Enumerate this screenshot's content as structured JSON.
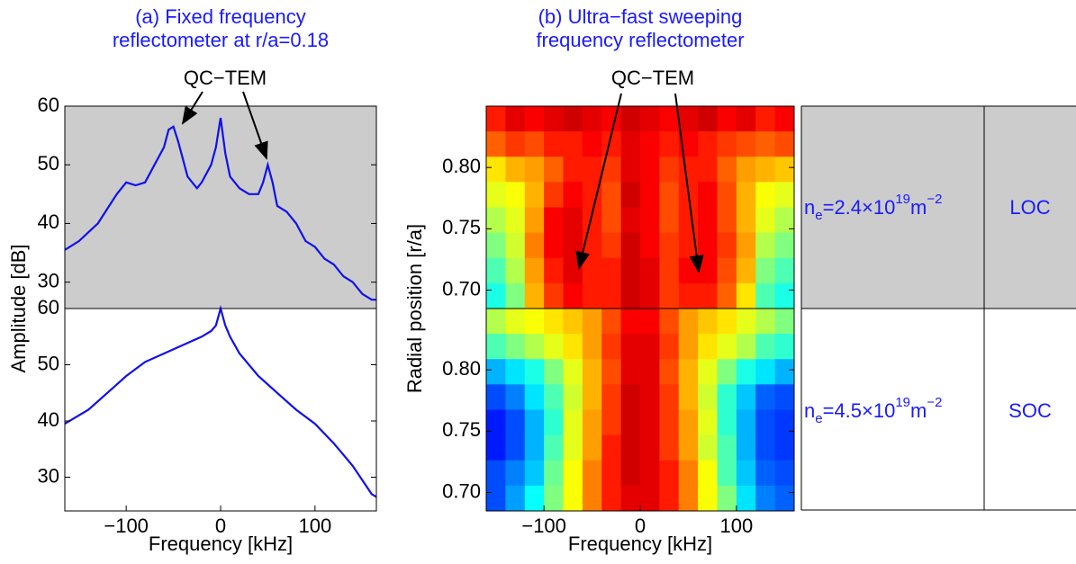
{
  "chart_data": [
    {
      "type": "line",
      "title": [
        "(a) Fixed frequency",
        "reflectometer at r/a=0.18"
      ],
      "ylabel": "Amplitude [dB]",
      "background": "#cccccc",
      "color": "#1010ee",
      "annotations": [
        {
          "text": "QC−TEM"
        }
      ],
      "x": [
        -165,
        -150,
        -130,
        -110,
        -100,
        -90,
        -80,
        -70,
        -60,
        -55,
        -50,
        -45,
        -40,
        -35,
        -30,
        -25,
        -20,
        -10,
        -5,
        0,
        5,
        10,
        20,
        30,
        40,
        45,
        50,
        55,
        60,
        70,
        80,
        90,
        100,
        110,
        120,
        130,
        140,
        150,
        160,
        165
      ],
      "values": [
        35.5,
        37,
        40,
        45,
        47,
        46.5,
        47,
        50,
        53,
        56,
        56.5,
        54,
        51,
        48,
        47,
        46,
        47,
        50,
        53,
        58,
        52,
        48,
        46,
        45,
        45,
        47,
        50,
        47,
        43,
        42,
        40,
        37,
        36,
        34,
        33,
        31,
        30,
        28,
        27,
        27
      ],
      "xlim": [
        -165,
        165
      ],
      "ylim": [
        25.5,
        60
      ],
      "yticks": [
        30,
        40,
        50,
        60
      ]
    },
    {
      "type": "line",
      "xlabel": "Frequency [kHz]",
      "color": "#1010ee",
      "x": [
        -165,
        -140,
        -120,
        -100,
        -80,
        -60,
        -40,
        -20,
        -10,
        -5,
        0,
        5,
        10,
        20,
        40,
        60,
        80,
        100,
        120,
        140,
        160,
        165
      ],
      "values": [
        39.5,
        42,
        45,
        48,
        50.5,
        52,
        53.5,
        55,
        56,
        57,
        60,
        57,
        55,
        52,
        48,
        45,
        42,
        39.5,
        36,
        32,
        27,
        26.5
      ],
      "xlim": [
        -165,
        165
      ],
      "ylim": [
        24,
        60
      ],
      "yticks": [
        30,
        40,
        50,
        60
      ],
      "xticks": [
        {
          "value": -100,
          "label": "−100"
        },
        0,
        100
      ]
    },
    {
      "type": "heatmap",
      "title": [
        "(b) Ultra−fast sweeping",
        "frequency reflectometer"
      ],
      "ylabel": "Radial position [r/a]",
      "colormap": "jet",
      "clim": [
        0,
        1
      ],
      "annotations": [
        {
          "text": "QC−TEM"
        }
      ],
      "xlim": [
        -160,
        160
      ],
      "ylim": [
        0.685,
        0.85
      ],
      "yticks": [
        {
          "value": 0.7,
          "label": "0.70"
        },
        {
          "value": 0.75,
          "label": "0.75"
        },
        {
          "value": 0.8,
          "label": "0.80"
        }
      ],
      "z": [
        [
          0.85,
          0.9,
          0.88,
          0.9,
          0.92,
          0.9,
          0.88,
          0.92,
          0.9,
          0.88,
          0.9,
          0.92,
          0.88,
          0.9,
          0.85,
          0.88
        ],
        [
          0.78,
          0.82,
          0.8,
          0.85,
          0.85,
          0.88,
          0.85,
          0.9,
          0.88,
          0.85,
          0.88,
          0.85,
          0.82,
          0.8,
          0.78,
          0.8
        ],
        [
          0.65,
          0.7,
          0.72,
          0.78,
          0.85,
          0.85,
          0.82,
          0.9,
          0.88,
          0.82,
          0.85,
          0.85,
          0.78,
          0.72,
          0.7,
          0.68
        ],
        [
          0.6,
          0.62,
          0.7,
          0.82,
          0.88,
          0.85,
          0.8,
          0.92,
          0.88,
          0.8,
          0.85,
          0.88,
          0.8,
          0.7,
          0.62,
          0.6
        ],
        [
          0.55,
          0.6,
          0.72,
          0.88,
          0.9,
          0.85,
          0.8,
          0.9,
          0.88,
          0.8,
          0.85,
          0.88,
          0.8,
          0.7,
          0.6,
          0.55
        ],
        [
          0.5,
          0.58,
          0.75,
          0.88,
          0.9,
          0.85,
          0.82,
          0.92,
          0.88,
          0.82,
          0.85,
          0.88,
          0.82,
          0.72,
          0.55,
          0.5
        ],
        [
          0.45,
          0.55,
          0.72,
          0.85,
          0.9,
          0.85,
          0.85,
          0.92,
          0.9,
          0.82,
          0.88,
          0.88,
          0.8,
          0.7,
          0.5,
          0.45
        ],
        [
          0.4,
          0.5,
          0.7,
          0.82,
          0.88,
          0.85,
          0.85,
          0.92,
          0.9,
          0.82,
          0.85,
          0.85,
          0.78,
          0.65,
          0.45,
          0.4
        ]
      ]
    },
    {
      "type": "heatmap",
      "xlabel": "Frequency [kHz]",
      "colormap": "jet",
      "clim": [
        0,
        1
      ],
      "xlim": [
        -160,
        160
      ],
      "ylim": [
        0.685,
        0.85
      ],
      "xticks": [
        {
          "value": -100,
          "label": "−100"
        },
        0,
        100
      ],
      "yticks": [
        {
          "value": 0.7,
          "label": "0.70"
        },
        {
          "value": 0.75,
          "label": "0.75"
        },
        {
          "value": 0.8,
          "label": "0.80"
        }
      ],
      "z": [
        [
          0.55,
          0.6,
          0.62,
          0.65,
          0.68,
          0.72,
          0.8,
          0.88,
          0.88,
          0.8,
          0.72,
          0.68,
          0.65,
          0.6,
          0.55,
          0.5
        ],
        [
          0.45,
          0.5,
          0.55,
          0.6,
          0.65,
          0.72,
          0.82,
          0.9,
          0.9,
          0.82,
          0.72,
          0.65,
          0.6,
          0.55,
          0.45,
          0.42
        ],
        [
          0.3,
          0.35,
          0.4,
          0.5,
          0.6,
          0.7,
          0.8,
          0.9,
          0.9,
          0.8,
          0.7,
          0.6,
          0.5,
          0.4,
          0.35,
          0.3
        ],
        [
          0.2,
          0.25,
          0.35,
          0.45,
          0.58,
          0.7,
          0.82,
          0.92,
          0.9,
          0.82,
          0.7,
          0.58,
          0.42,
          0.32,
          0.22,
          0.2
        ],
        [
          0.15,
          0.2,
          0.3,
          0.42,
          0.6,
          0.72,
          0.82,
          0.92,
          0.9,
          0.82,
          0.72,
          0.6,
          0.42,
          0.3,
          0.2,
          0.18
        ],
        [
          0.15,
          0.2,
          0.3,
          0.45,
          0.6,
          0.72,
          0.85,
          0.92,
          0.9,
          0.82,
          0.72,
          0.58,
          0.45,
          0.3,
          0.2,
          0.18
        ],
        [
          0.2,
          0.25,
          0.32,
          0.48,
          0.62,
          0.75,
          0.85,
          0.92,
          0.9,
          0.85,
          0.75,
          0.62,
          0.45,
          0.32,
          0.22,
          0.2
        ],
        [
          0.2,
          0.28,
          0.38,
          0.5,
          0.62,
          0.75,
          0.85,
          0.9,
          0.9,
          0.85,
          0.75,
          0.62,
          0.5,
          0.35,
          0.25,
          0.22
        ]
      ]
    }
  ],
  "table": {
    "rows": [
      [
        {
          "base": "n",
          "sub": "e",
          "text": "=2.4×10",
          "exp": "19",
          "unit": "m",
          "unit_exp": "−2"
        },
        "LOC"
      ],
      [
        {
          "base": "n",
          "sub": "e",
          "text": "=4.5×10",
          "exp": "19",
          "unit": "m",
          "unit_exp": "−2"
        },
        "SOC"
      ]
    ]
  }
}
